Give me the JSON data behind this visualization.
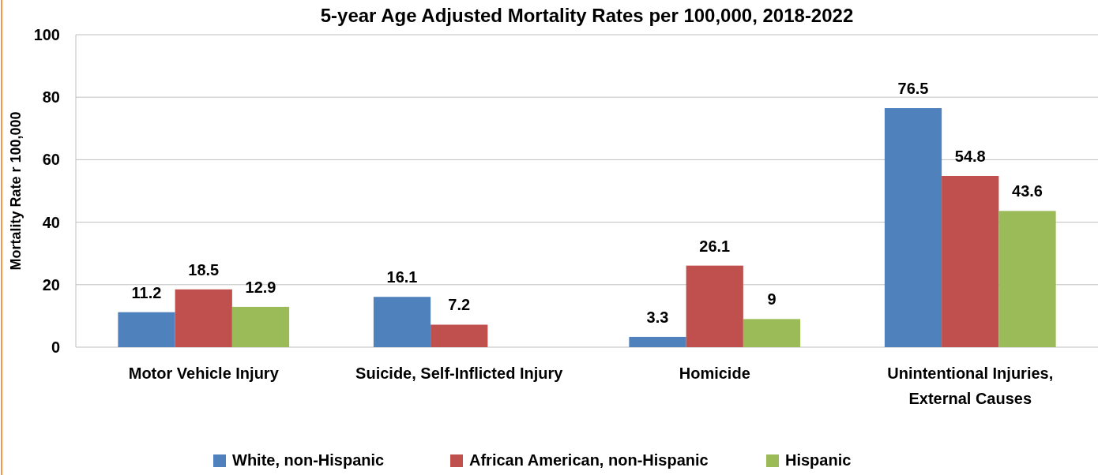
{
  "chart_data": {
    "type": "bar",
    "title": "5-year Age Adjusted Mortality Rates per 100,000, 2018-2022",
    "ylabel": "Mortality Rate r 100,000",
    "categories": [
      "Motor Vehicle Injury",
      "Suicide, Self-Inflicted Injury",
      "Homicide",
      "Unintentional Injuries, External Causes"
    ],
    "series": [
      {
        "name": "White, non-Hispanic",
        "color": "#4f81bd",
        "values": [
          11.2,
          16.1,
          3.3,
          76.5
        ]
      },
      {
        "name": "African American, non-Hispanic",
        "color": "#c0504d",
        "values": [
          18.5,
          7.2,
          26.1,
          54.8
        ]
      },
      {
        "name": "Hispanic",
        "color": "#9bbb59",
        "values": [
          12.9,
          null,
          9,
          43.6
        ]
      }
    ],
    "ylim": [
      0,
      100
    ],
    "yticks": [
      0,
      20,
      40,
      60,
      80,
      100
    ],
    "grid": "y",
    "legend": "bottom",
    "data_labels": true
  }
}
